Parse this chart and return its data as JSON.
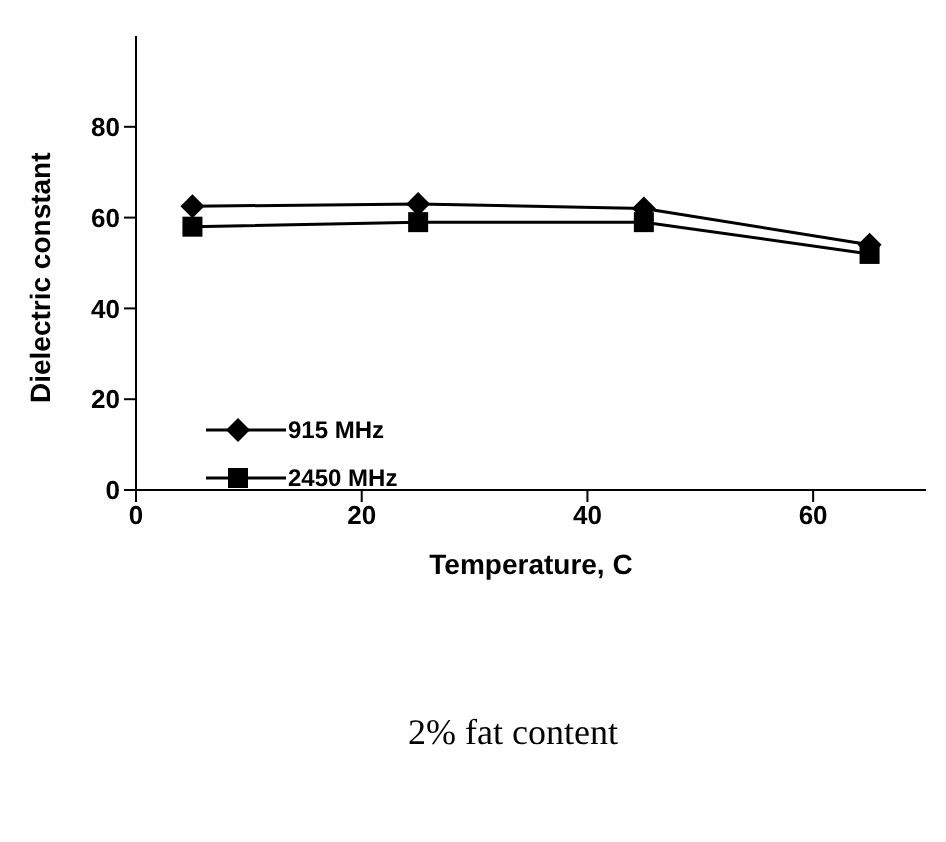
{
  "chart_data": {
    "type": "line",
    "xlabel": "Temperature, C",
    "ylabel": "Dielectric constant",
    "annotations": [
      "2% fat content"
    ],
    "x": [
      5,
      25,
      45,
      65
    ],
    "series": [
      {
        "name": "915 MHz",
        "color": "#000000",
        "marker": "diamond",
        "values": [
          62.5,
          63,
          62,
          54
        ]
      },
      {
        "name": "2450 MHz",
        "color": "#000000",
        "marker": "square",
        "values": [
          58,
          59,
          59,
          52
        ]
      }
    ],
    "xlim": [
      0,
      70
    ],
    "xticks": [
      0,
      20,
      40,
      60
    ],
    "ylim": [
      0,
      100
    ],
    "yticks": [
      0,
      20,
      40,
      60,
      80
    ],
    "grid": false,
    "legend": "center left",
    "line_style": "solid"
  }
}
